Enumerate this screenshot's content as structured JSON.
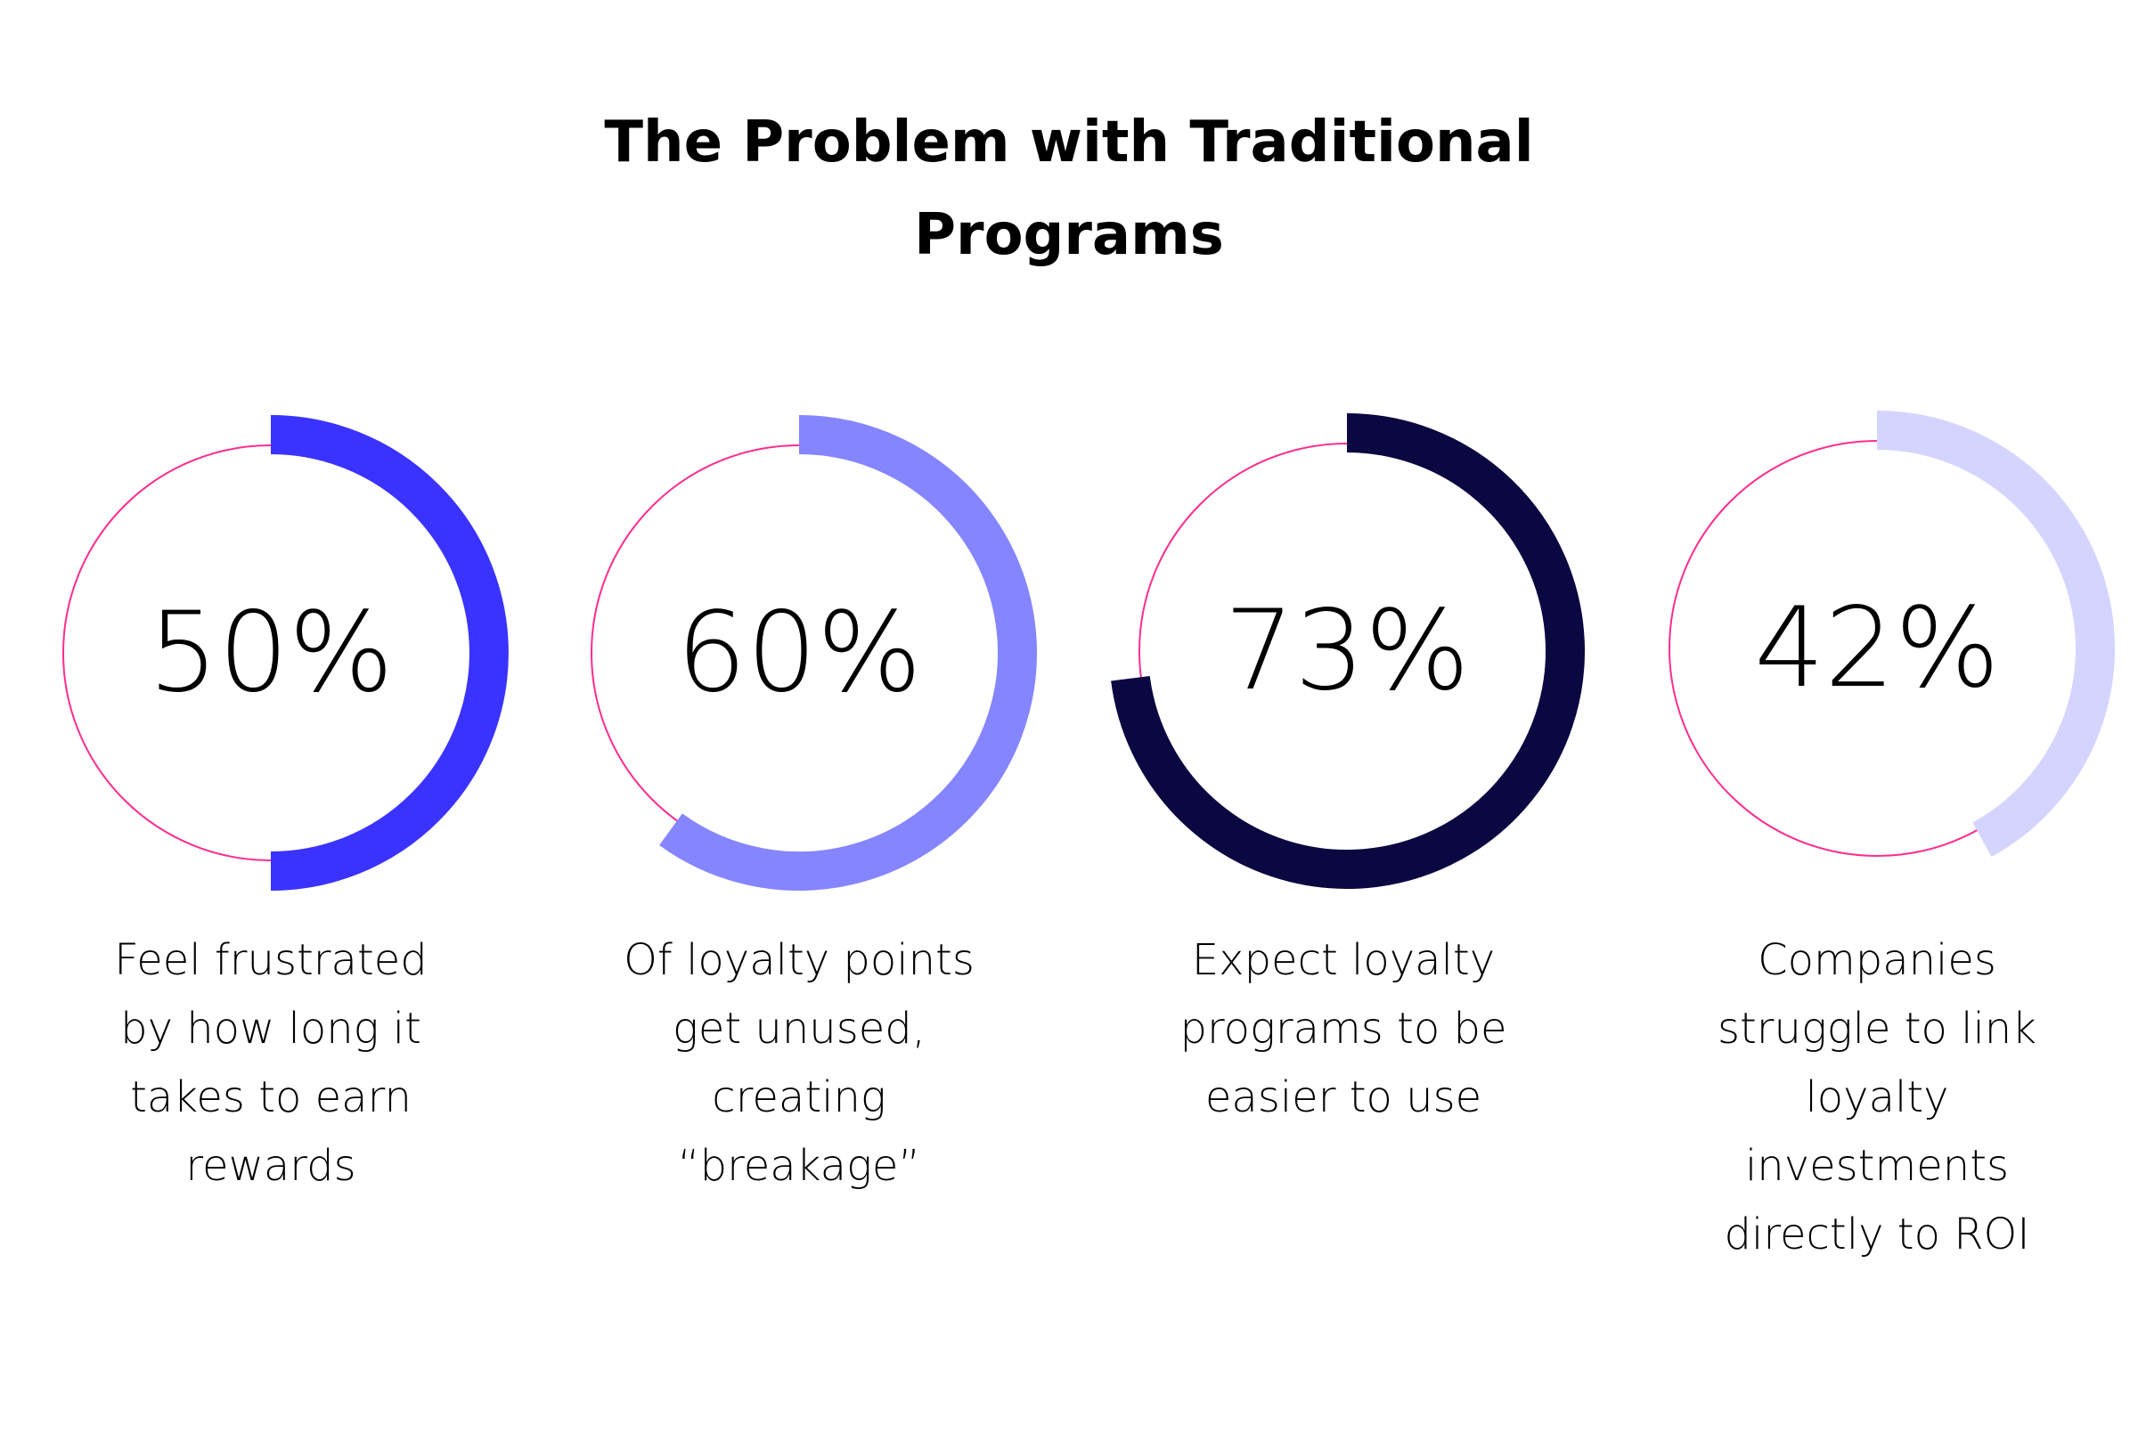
{
  "title": {
    "line1": "The Problem with Traditional",
    "line2": "Programs"
  },
  "colors": {
    "outline": "#ff2d8f",
    "gauge1": "#3a33ff",
    "gauge2": "#8585ff",
    "gauge3": "#0b0741",
    "gauge4": "#d4d4ff"
  },
  "chart_data": {
    "type": "gauge",
    "title": "The Problem with Traditional Programs",
    "series": [
      {
        "value": 50,
        "label": "50%",
        "description": [
          "Feel frustrated",
          "by how long it",
          "takes to earn",
          "rewards"
        ]
      },
      {
        "value": 60,
        "label": "60%",
        "description": [
          "Of loyalty points",
          "get unused,",
          "creating",
          "“breakage”"
        ]
      },
      {
        "value": 73,
        "label": "73%",
        "description": [
          "Expect loyalty",
          "programs to be",
          "easier to use"
        ]
      },
      {
        "value": 42,
        "label": "42%",
        "description": [
          "Companies",
          "struggle to link",
          "loyalty",
          "investments",
          "directly to ROI"
        ]
      }
    ]
  }
}
